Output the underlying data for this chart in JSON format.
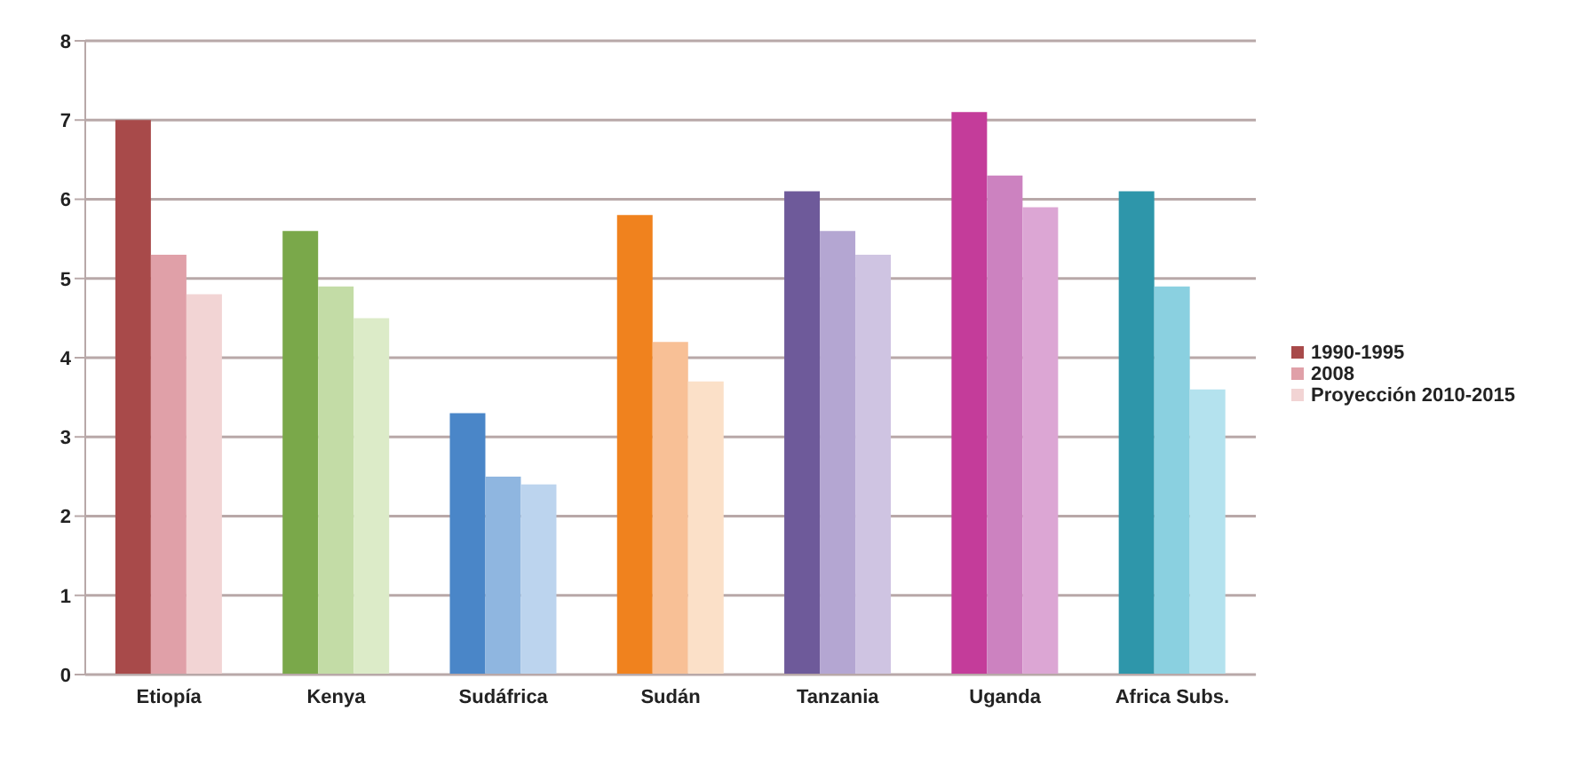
{
  "chart_data": {
    "type": "bar",
    "categories": [
      "Etiopía",
      "Kenya",
      "Sudáfrica",
      "Sudán",
      "Tanzania",
      "Uganda",
      "Africa Subs."
    ],
    "series": [
      {
        "name": "1990-1995",
        "color": "#a84a4a",
        "colors": [
          "#a84a4a",
          "#7aa84a",
          "#4a86c8",
          "#f0821e",
          "#6e5a9a",
          "#c43c9a",
          "#2e96aa"
        ],
        "values": [
          7.0,
          5.6,
          3.3,
          5.8,
          6.1,
          7.1,
          6.1
        ]
      },
      {
        "name": "2008",
        "color": "#e0a0a8",
        "colors": [
          "#e0a0a8",
          "#c3dca6",
          "#8fb6e0",
          "#f8c096",
          "#b4a6d2",
          "#cc82c0",
          "#8ad0e0"
        ],
        "values": [
          5.3,
          4.9,
          2.5,
          4.2,
          5.6,
          6.3,
          4.9
        ]
      },
      {
        "name": "Proyección 2010-2015",
        "color": "#f2d4d4",
        "colors": [
          "#f2d4d4",
          "#dcebc8",
          "#bcd4ee",
          "#fbe0c8",
          "#cfc4e2",
          "#dca6d4",
          "#b4e2ee"
        ],
        "values": [
          4.8,
          4.5,
          2.4,
          3.7,
          5.3,
          5.9,
          3.6
        ]
      }
    ],
    "ylim": [
      0,
      8
    ],
    "yticks": [
      0,
      1,
      2,
      3,
      4,
      5,
      6,
      7,
      8
    ],
    "grid": "y",
    "legend": "right"
  }
}
